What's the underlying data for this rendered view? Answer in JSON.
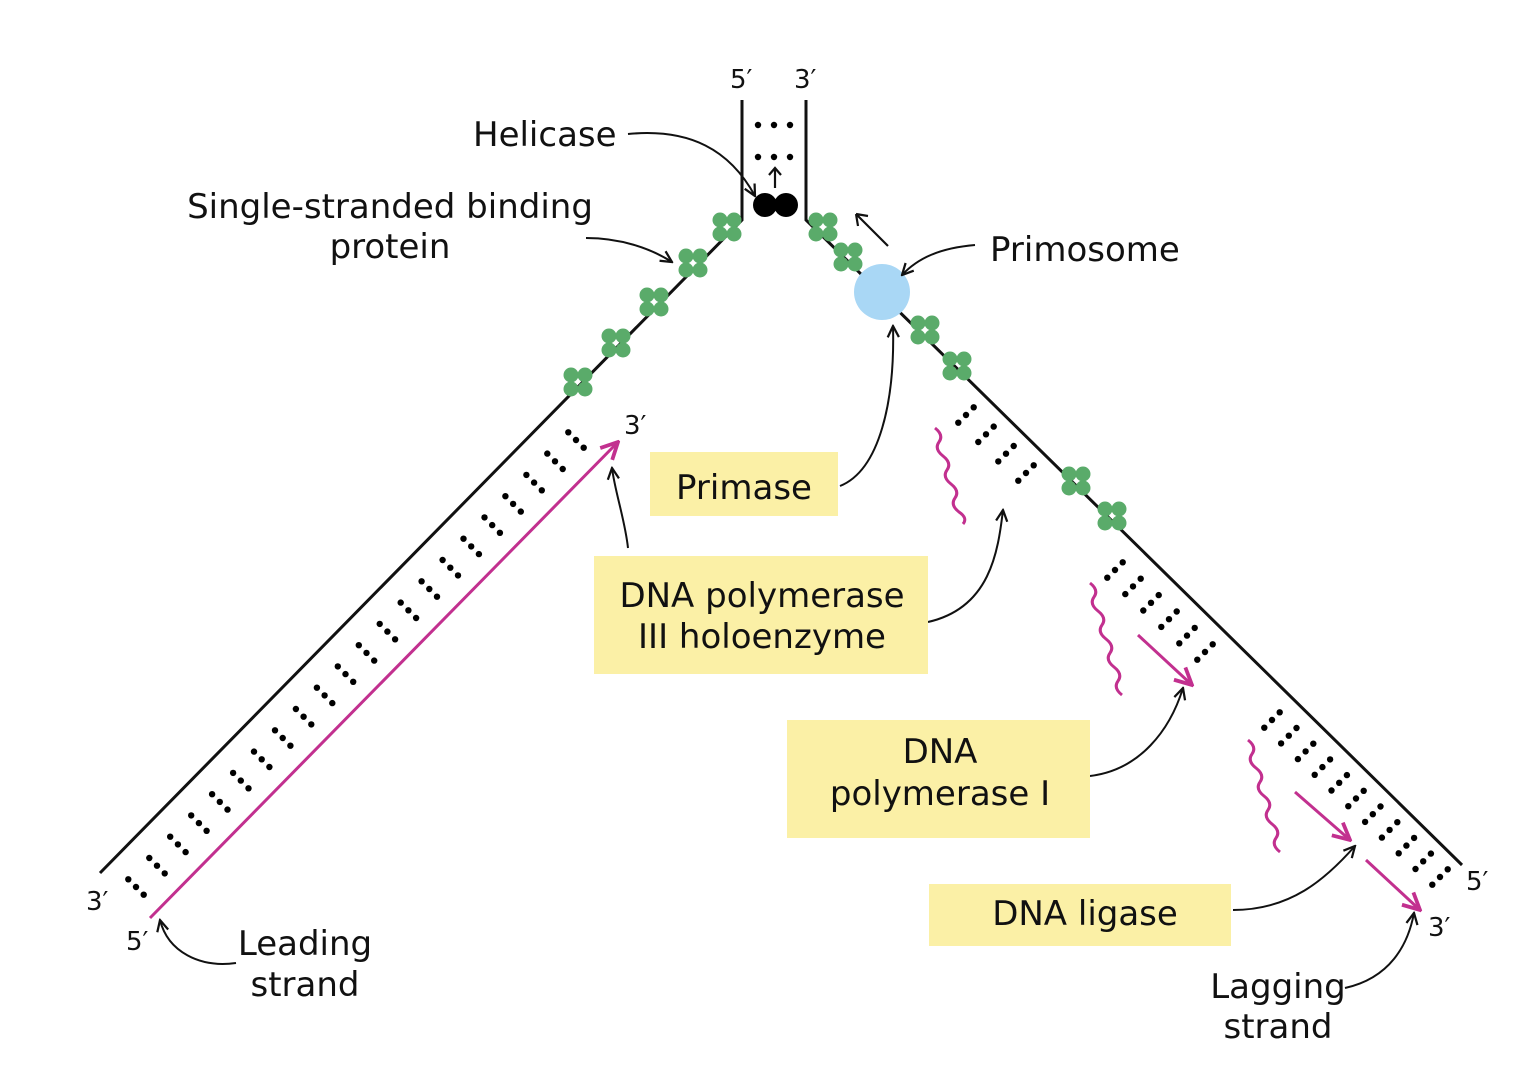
{
  "diagram": {
    "helicase": "Helicase",
    "ssb_line1": "Single-stranded binding",
    "ssb_line2": "protein",
    "primosome": "Primosome",
    "primase": "Primase",
    "pol3_line1": "DNA polymerase",
    "pol3_line2": "III holoenzyme",
    "pol1_line1": "DNA",
    "pol1_line2": "polymerase I",
    "ligase": "DNA ligase",
    "leading_line1": "Leading",
    "leading_line2": "strand",
    "lagging_line1": "Lagging",
    "lagging_line2": "strand"
  },
  "ends": {
    "top_left": "5′",
    "top_right": "3′",
    "leading_new_3": "3′",
    "bottom_left_3": "3′",
    "bottom_left_5": "5′",
    "bottom_right_5": "5′",
    "bottom_right_3": "3′"
  },
  "colors": {
    "strand": "#111111",
    "new_strand": "#c2308f",
    "ssb": "#5aab6a",
    "primosome": "#a9d7f5",
    "label_box": "#fbf0a6",
    "helicase": "#000000"
  }
}
